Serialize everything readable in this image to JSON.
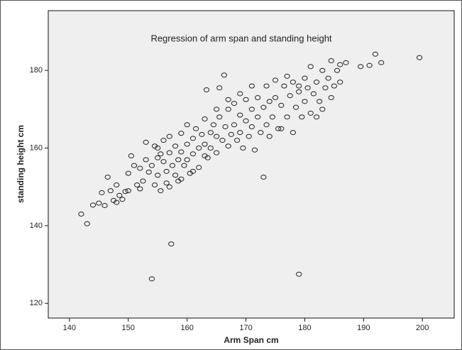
{
  "chart_data": {
    "type": "scatter",
    "title": "Regression of arm span and standing height",
    "x_label": "Arm Span cm",
    "y_label": "standing height cm",
    "xlim": [
      136.4,
      205.4
    ],
    "ylim": [
      116.2,
      195.4
    ],
    "xticks": [
      140,
      150,
      160,
      170,
      180,
      190,
      200
    ],
    "yticks": [
      120,
      140,
      160,
      180
    ],
    "color": "#222222",
    "grid": false,
    "x": [
      142,
      143,
      144,
      145,
      145.5,
      146,
      146.5,
      147,
      147.5,
      148,
      148.5,
      149,
      149.5,
      150,
      150.5,
      151,
      151.5,
      152,
      152.5,
      153,
      153.5,
      154,
      154,
      154.5,
      154.5,
      155,
      155,
      155.5,
      155.5,
      156,
      156,
      156.5,
      156.5,
      157,
      157,
      157.3,
      157.5,
      158,
      158,
      158.5,
      158.5,
      159,
      159,
      159.5,
      160,
      160,
      160,
      160.5,
      161,
      161,
      161.5,
      162,
      162,
      162.5,
      163,
      163,
      163.3,
      163.5,
      164,
      164,
      164.5,
      165,
      165,
      165.5,
      165.5,
      166,
      166.3,
      166.5,
      167,
      167,
      167.5,
      168,
      168,
      168.5,
      169,
      169,
      169.5,
      170,
      170,
      170.5,
      171,
      171,
      171.5,
      172,
      172,
      172.5,
      173,
      173,
      173.5,
      173.5,
      174,
      174.5,
      175,
      175,
      175.5,
      176,
      176.5,
      177,
      177.5,
      178,
      178,
      178.5,
      179,
      179,
      179.5,
      180,
      180,
      180.5,
      181,
      181,
      181.5,
      182,
      182.5,
      183,
      183.5,
      184,
      184.5,
      184.5,
      185,
      185.5,
      186,
      187,
      189.5,
      191,
      192,
      193,
      199.5,
      152,
      155,
      157,
      159,
      161,
      163,
      165,
      167,
      169,
      171,
      174,
      176,
      177,
      179,
      182,
      183,
      186,
      153,
      150,
      148
    ],
    "y": [
      143,
      140.5,
      145.3,
      145.8,
      148.5,
      145.2,
      152.5,
      149,
      146.5,
      150.5,
      147.8,
      146.8,
      148.8,
      153.5,
      158,
      155.5,
      150.5,
      154.8,
      151.5,
      157,
      153.8,
      155.5,
      126.3,
      160.5,
      150.5,
      157.5,
      153,
      158.5,
      149,
      162,
      156.5,
      154,
      151,
      158.8,
      163,
      135.3,
      155.5,
      160.5,
      153,
      157,
      151.5,
      163.8,
      159,
      155.5,
      166,
      161,
      157,
      153.5,
      162.5,
      158.5,
      165,
      160,
      155,
      163.5,
      167.5,
      161,
      175,
      157.5,
      164,
      160,
      166,
      163,
      158.8,
      175.5,
      168,
      162,
      178.8,
      165.5,
      160.5,
      170,
      163.5,
      166,
      171.5,
      162,
      168.5,
      164,
      160,
      172.5,
      167,
      163,
      170,
      165.5,
      159.5,
      173,
      168,
      164,
      152.5,
      170.5,
      176,
      166,
      172,
      168,
      177.5,
      173,
      165,
      171,
      176,
      168,
      173.5,
      177,
      164,
      170.5,
      127.5,
      174.5,
      168,
      178,
      172,
      175.5,
      181,
      169,
      174,
      177,
      172,
      180,
      175.5,
      178,
      182.5,
      173,
      176,
      180,
      181.5,
      182,
      181,
      181.3,
      184.2,
      182,
      183.3,
      149.5,
      160,
      150,
      152,
      154,
      158,
      170,
      172.5,
      174,
      176,
      163,
      165,
      178.5,
      176,
      168,
      170,
      177,
      161.5,
      149,
      146
    ]
  }
}
